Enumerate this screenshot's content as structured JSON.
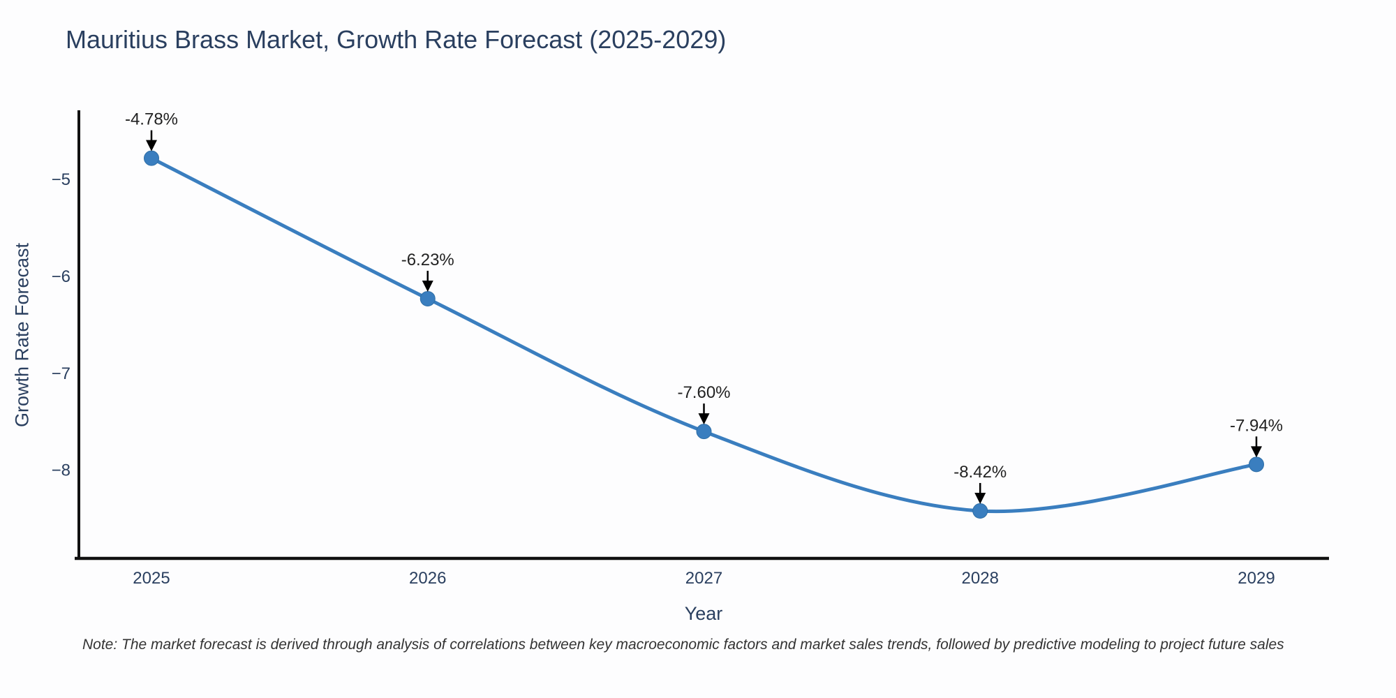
{
  "page": {
    "background": "#ffffff"
  },
  "chart": {
    "title": "Mauritius Brass Market, Growth Rate Forecast (2025-2029)",
    "note": "Note: The market forecast is derived through analysis of correlations between key macroeconomic factors and market sales trends, followed by predictive modeling to project future sales",
    "colors": {
      "line": "#3a7ebf",
      "marker": "#3a7ebf",
      "axis_line": "#111111",
      "axis_text": "#2a3f5f",
      "annotation_text": "#222222",
      "arrow": "#000000"
    }
  },
  "chart_data": {
    "type": "line",
    "line_shape": "spline",
    "title": "Mauritius Brass Market, Growth Rate Forecast (2025-2029)",
    "xlabel": "Year",
    "ylabel": "Growth Rate Forecast",
    "x": [
      "2025",
      "2026",
      "2027",
      "2028",
      "2029"
    ],
    "series": [
      {
        "name": "Growth Rate Forecast",
        "values": [
          -4.78,
          -6.23,
          -7.6,
          -8.42,
          -7.94
        ]
      }
    ],
    "point_labels": [
      "-4.78%",
      "-6.23%",
      "-7.60%",
      "-8.42%",
      "-7.94%"
    ],
    "yticks": [
      {
        "v": -5,
        "label": "−5"
      },
      {
        "v": -6,
        "label": "−6"
      },
      {
        "v": -7,
        "label": "−7"
      },
      {
        "v": -8,
        "label": "−8"
      }
    ],
    "ylim": [
      -8.91,
      -4.3
    ],
    "grid": false,
    "legend": "none",
    "annotations": "value labels with down arrows above each point"
  }
}
